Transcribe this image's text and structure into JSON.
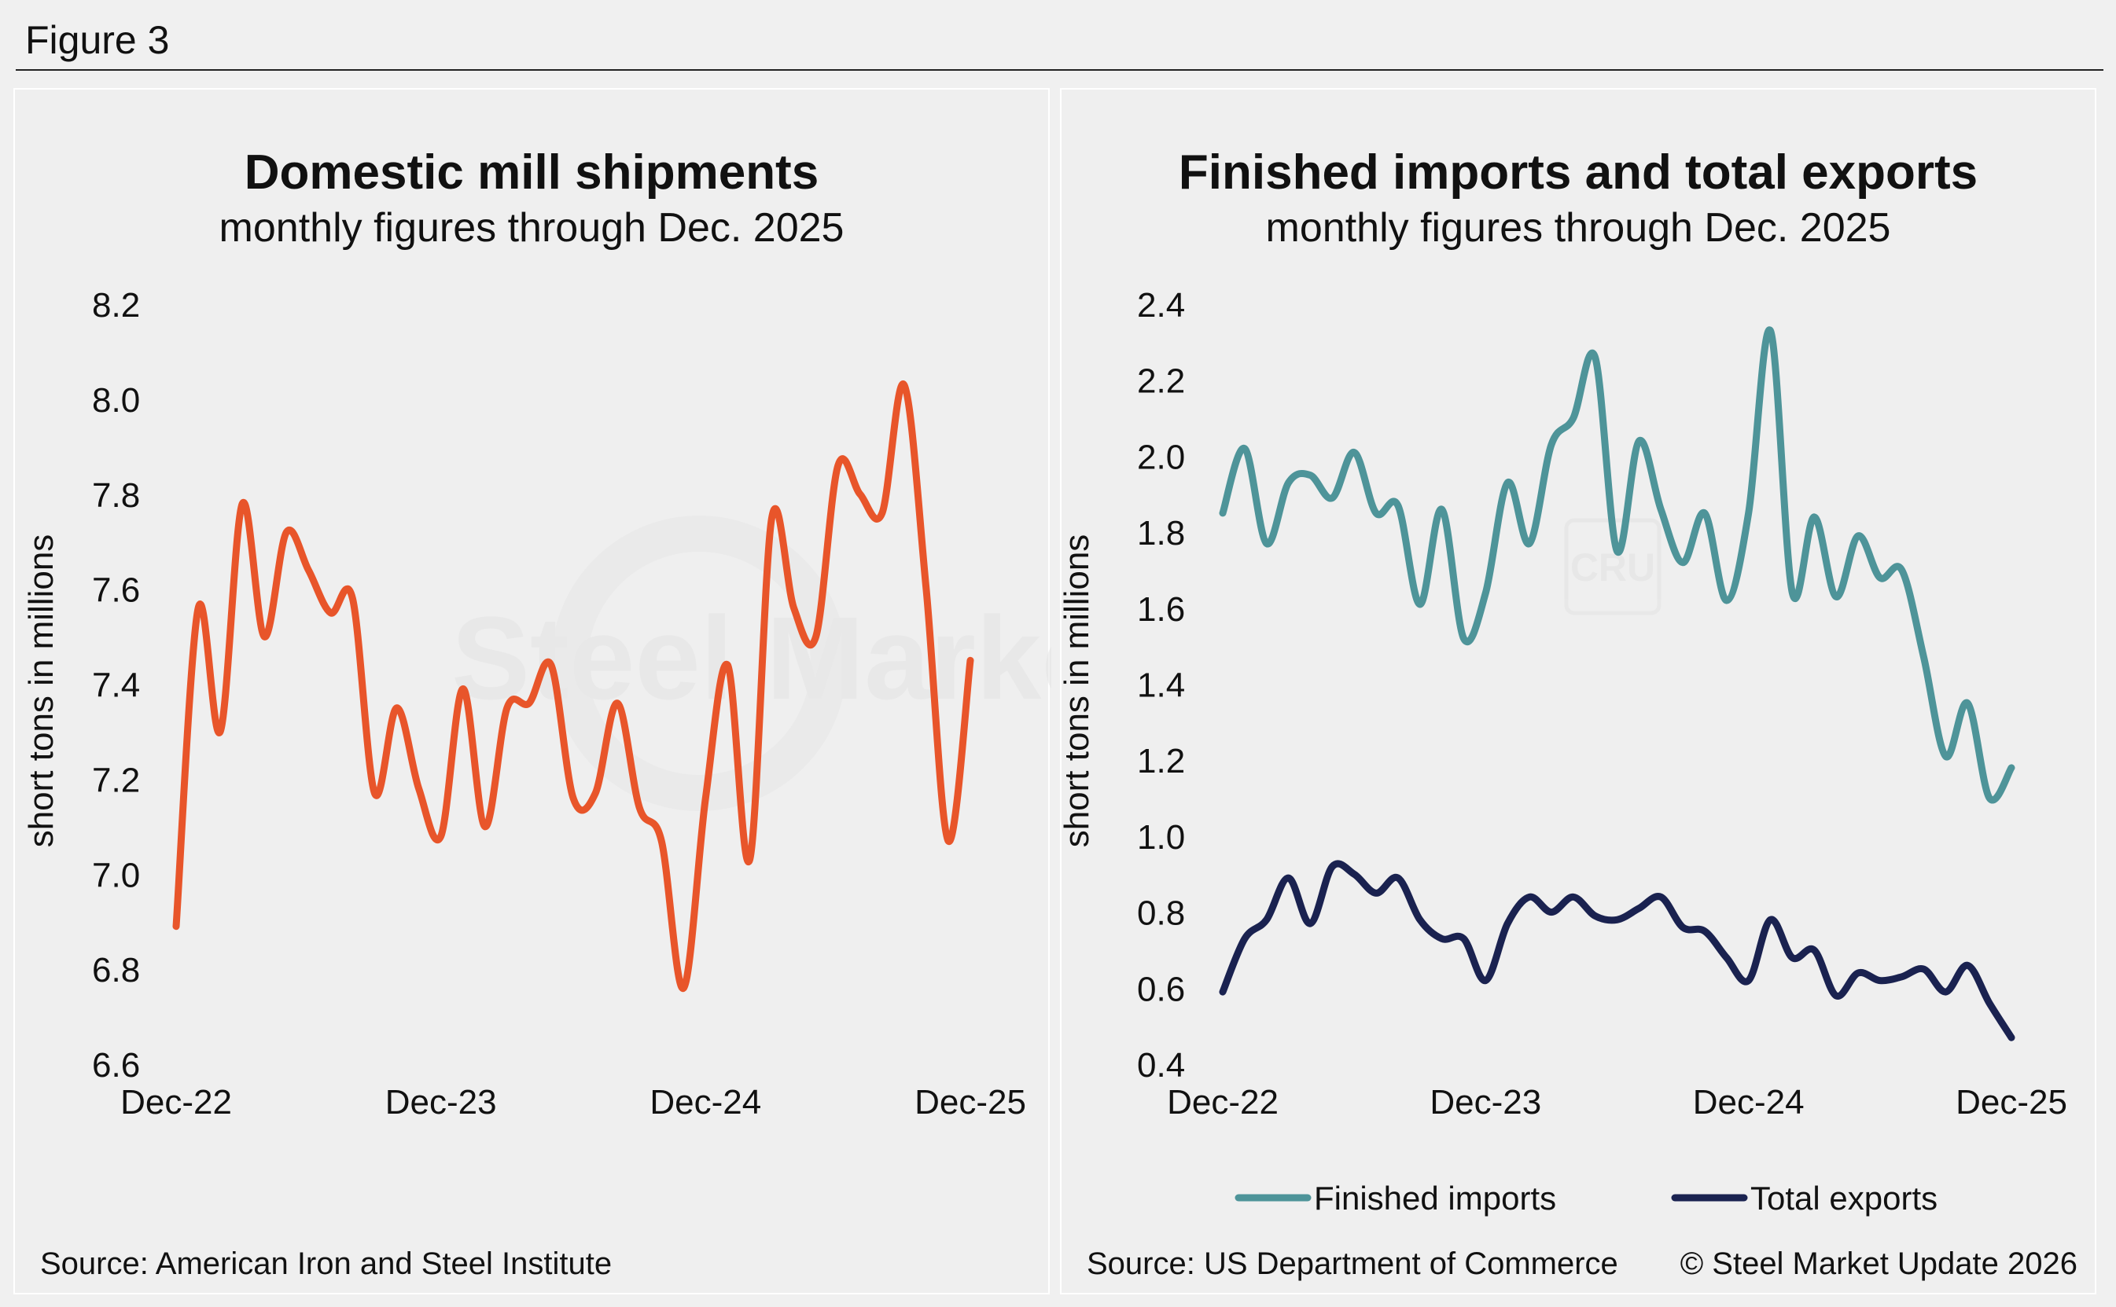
{
  "figure": {
    "label": "Figure 3"
  },
  "colors": {
    "shipments": "#e8552a",
    "imports": "#4e9499",
    "exports": "#1a2250"
  },
  "watermark": {
    "brand": "Steel Market Update",
    "mark": "CRU"
  },
  "chart_data": [
    {
      "type": "line",
      "title": "Domestic mill shipments",
      "subtitle": "monthly figures through Dec. 2025",
      "ylabel": "short tons in millions",
      "ylim": [
        6.6,
        8.2
      ],
      "yticks": [
        "8.2",
        "8.0",
        "7.8",
        "7.6",
        "7.4",
        "7.2",
        "7.0",
        "6.8",
        "6.6"
      ],
      "xticks": [
        "Dec-22",
        "Dec-23",
        "Dec-24",
        "Dec-25"
      ],
      "x": [
        "Dec-22",
        "Jan-23",
        "Feb-23",
        "Mar-23",
        "Apr-23",
        "May-23",
        "Jun-23",
        "Jul-23",
        "Aug-23",
        "Sep-23",
        "Oct-23",
        "Nov-23",
        "Dec-23",
        "Jan-24",
        "Feb-24",
        "Mar-24",
        "Apr-24",
        "May-24",
        "Jun-24",
        "Jul-24",
        "Aug-24",
        "Sep-24",
        "Oct-24",
        "Nov-24",
        "Dec-24",
        "Jan-25",
        "Feb-25",
        "Mar-25",
        "Apr-25",
        "May-25",
        "Jun-25",
        "Jul-25",
        "Aug-25",
        "Sep-25",
        "Oct-25",
        "Nov-25",
        "Dec-25"
      ],
      "series": [
        {
          "color": "#e8552a",
          "values": [
            6.89,
            7.56,
            7.3,
            7.78,
            7.5,
            7.72,
            7.64,
            7.55,
            7.58,
            7.17,
            7.35,
            7.18,
            7.08,
            7.39,
            7.1,
            7.35,
            7.36,
            7.44,
            7.16,
            7.17,
            7.36,
            7.14,
            7.07,
            6.76,
            7.16,
            7.44,
            7.03,
            7.75,
            7.56,
            7.5,
            7.86,
            7.8,
            7.76,
            8.03,
            7.6,
            7.07,
            7.45
          ]
        }
      ],
      "source": "Source: American Iron and Steel Institute"
    },
    {
      "type": "line",
      "title": "Finished imports and total exports",
      "subtitle": "monthly figures through Dec. 2025",
      "ylabel": "short tons in millions",
      "ylim": [
        0.4,
        2.4
      ],
      "yticks": [
        "2.4",
        "2.2",
        "2.0",
        "1.8",
        "1.6",
        "1.4",
        "1.2",
        "1.0",
        "0.8",
        "0.6",
        "0.4"
      ],
      "xticks": [
        "Dec-22",
        "Dec-23",
        "Dec-24",
        "Dec-25"
      ],
      "x": [
        "Dec-22",
        "Jan-23",
        "Feb-23",
        "Mar-23",
        "Apr-23",
        "May-23",
        "Jun-23",
        "Jul-23",
        "Aug-23",
        "Sep-23",
        "Oct-23",
        "Nov-23",
        "Dec-23",
        "Jan-24",
        "Feb-24",
        "Mar-24",
        "Apr-24",
        "May-24",
        "Jun-24",
        "Jul-24",
        "Aug-24",
        "Sep-24",
        "Oct-24",
        "Nov-24",
        "Dec-24",
        "Jan-25",
        "Feb-25",
        "Mar-25",
        "Apr-25",
        "May-25",
        "Jun-25",
        "Jul-25",
        "Aug-25",
        "Sep-25",
        "Oct-25",
        "Nov-25",
        "Dec-25"
      ],
      "series": [
        {
          "name": "Finished imports",
          "color": "#4e9499",
          "values": [
            1.85,
            2.02,
            1.77,
            1.93,
            1.95,
            1.89,
            2.01,
            1.85,
            1.87,
            1.61,
            1.86,
            1.52,
            1.64,
            1.93,
            1.77,
            2.03,
            2.1,
            2.26,
            1.75,
            2.04,
            1.86,
            1.72,
            1.85,
            1.62,
            1.85,
            2.33,
            1.64,
            1.84,
            1.63,
            1.79,
            1.68,
            1.7,
            1.47,
            1.21,
            1.35,
            1.1,
            1.18
          ]
        },
        {
          "name": "Total exports",
          "color": "#1a2250",
          "values": [
            0.59,
            0.73,
            0.78,
            0.89,
            0.77,
            0.92,
            0.9,
            0.85,
            0.89,
            0.78,
            0.73,
            0.73,
            0.62,
            0.77,
            0.84,
            0.8,
            0.84,
            0.79,
            0.78,
            0.81,
            0.84,
            0.76,
            0.75,
            0.68,
            0.62,
            0.78,
            0.68,
            0.7,
            0.58,
            0.64,
            0.62,
            0.63,
            0.65,
            0.59,
            0.66,
            0.56,
            0.47
          ]
        }
      ],
      "legend": "bottom",
      "source": "Source: US Department of Commerce",
      "copyright": "© Steel Market Update 2026"
    }
  ]
}
